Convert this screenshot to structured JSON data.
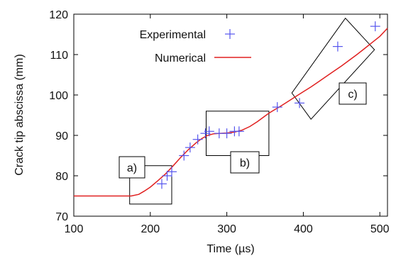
{
  "chart_data": {
    "type": "line",
    "title": "",
    "xlabel": "Time (µs)",
    "ylabel": "Crack tip abscissa (mm)",
    "xlim": [
      100,
      510
    ],
    "ylim": [
      70,
      120
    ],
    "x_ticks": [
      100,
      200,
      300,
      400,
      500
    ],
    "y_ticks": [
      70,
      80,
      90,
      100,
      110,
      120
    ],
    "grid": false,
    "legend_position": "top-left",
    "legend": [
      {
        "label": "Experimental",
        "marker": "plus",
        "color": "#5555ee"
      },
      {
        "label": "Numerical",
        "marker": "line",
        "color": "#e02020"
      }
    ],
    "series": [
      {
        "name": "Experimental",
        "kind": "scatter",
        "color": "#5555ee",
        "x": [
          215,
          222,
          228,
          244,
          252,
          262,
          272,
          277,
          290,
          300,
          310,
          316,
          366,
          395,
          445,
          494
        ],
        "y": [
          78,
          80,
          81,
          85,
          87,
          89,
          90.5,
          91,
          90.5,
          90.5,
          91,
          91,
          97,
          98,
          112,
          117
        ]
      },
      {
        "name": "Numerical",
        "kind": "line",
        "color": "#e02020",
        "x": [
          100,
          175,
          185,
          192,
          200,
          210,
          220,
          230,
          240,
          250,
          260,
          268,
          275,
          283,
          290,
          300,
          310,
          320,
          330,
          340,
          350,
          355,
          362,
          370,
          380,
          390,
          400,
          410,
          420,
          430,
          440,
          450,
          460,
          470,
          480,
          490,
          500,
          510
        ],
        "y": [
          75,
          75,
          75.4,
          76.2,
          77.2,
          78.8,
          80.5,
          82.5,
          84.6,
          86.5,
          88.2,
          89.3,
          90,
          90.4,
          90.5,
          90.6,
          90.8,
          91.3,
          92.2,
          93.4,
          94.8,
          95.5,
          96.3,
          97.2,
          98.4,
          99.6,
          100.8,
          102,
          103.3,
          104.6,
          105.9,
          107.2,
          108.6,
          110,
          111.5,
          113,
          114.5,
          116.5
        ]
      }
    ],
    "annotations": [
      {
        "label": "a)",
        "box": {
          "x1": 173,
          "x2": 228,
          "y1": 73,
          "y2": 82.5
        }
      },
      {
        "label": "b)",
        "box": {
          "x1": 273,
          "x2": 355,
          "y1": 85,
          "y2": 96
        }
      },
      {
        "label": "c)",
        "box_corners": [
          [
            385,
            100.5
          ],
          [
            455,
            119
          ],
          [
            493,
            111.2
          ],
          [
            410,
            94
          ]
        ]
      }
    ]
  }
}
